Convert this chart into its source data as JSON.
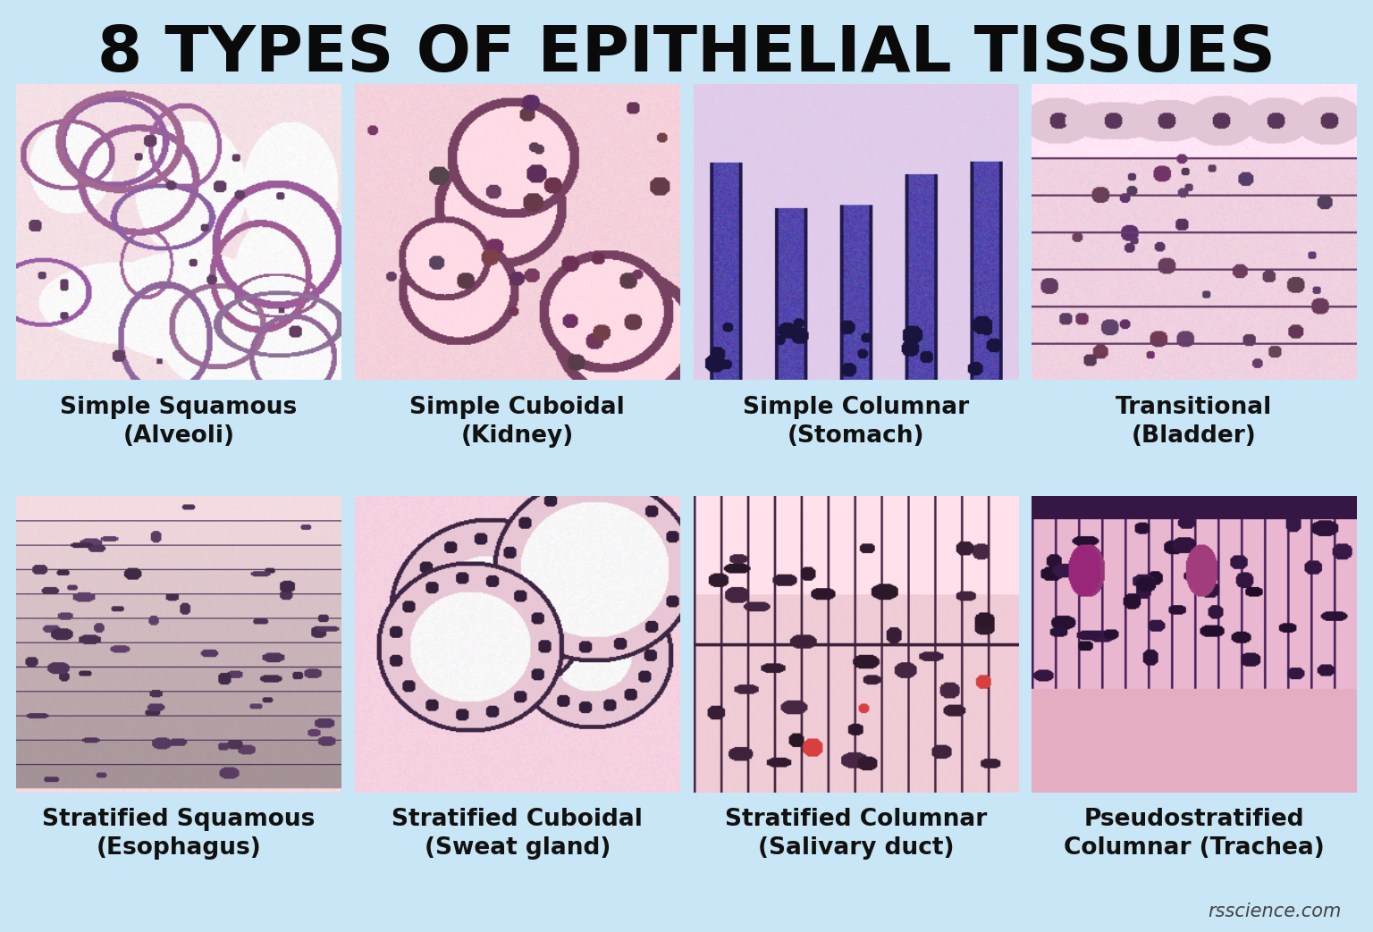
{
  "title": "8 TYPES OF EPITHELIAL TISSUES",
  "background_color": "#c8e6f5",
  "title_fontsize": 52,
  "label_fontsize": 19,
  "watermark": "rsscience.com",
  "grid_rows": 2,
  "grid_cols": 4,
  "images": [
    {
      "row": 0,
      "col": 0,
      "label_line1": "Simple Squamous",
      "label_line2": "(Alveoli)",
      "base_color": [
        0.96,
        0.88,
        0.9
      ],
      "dark_color": [
        0.55,
        0.35,
        0.55
      ],
      "style": "squamous_simple"
    },
    {
      "row": 0,
      "col": 1,
      "label_line1": "Simple Cuboidal",
      "label_line2": "(Kidney)",
      "base_color": [
        0.96,
        0.82,
        0.86
      ],
      "dark_color": [
        0.55,
        0.3,
        0.45
      ],
      "style": "cuboidal_simple"
    },
    {
      "row": 0,
      "col": 2,
      "label_line1": "Simple Columnar",
      "label_line2": "(Stomach)",
      "base_color": [
        0.88,
        0.8,
        0.92
      ],
      "dark_color": [
        0.25,
        0.2,
        0.6
      ],
      "style": "columnar_simple"
    },
    {
      "row": 0,
      "col": 3,
      "label_line1": "Transitional",
      "label_line2": "(Bladder)",
      "base_color": [
        0.94,
        0.82,
        0.88
      ],
      "dark_color": [
        0.5,
        0.3,
        0.5
      ],
      "style": "transitional"
    },
    {
      "row": 1,
      "col": 0,
      "label_line1": "Stratified Squamous",
      "label_line2": "(Esophagus)",
      "base_color": [
        0.96,
        0.86,
        0.88
      ],
      "dark_color": [
        0.45,
        0.3,
        0.5
      ],
      "style": "squamous_stratified"
    },
    {
      "row": 1,
      "col": 1,
      "label_line1": "Stratified Cuboidal",
      "label_line2": "(Sweat gland)",
      "base_color": [
        0.96,
        0.82,
        0.88
      ],
      "dark_color": [
        0.4,
        0.25,
        0.45
      ],
      "style": "cuboidal_stratified"
    },
    {
      "row": 1,
      "col": 2,
      "label_line1": "Stratified Columnar",
      "label_line2": "(Salivary duct)",
      "base_color": [
        0.94,
        0.8,
        0.84
      ],
      "dark_color": [
        0.4,
        0.22,
        0.38
      ],
      "style": "columnar_stratified"
    },
    {
      "row": 1,
      "col": 3,
      "label_line1": "Pseudostratified",
      "label_line2": "Columnar (Trachea)",
      "base_color": [
        0.92,
        0.72,
        0.82
      ],
      "dark_color": [
        0.35,
        0.15,
        0.45
      ],
      "style": "pseudostratified"
    }
  ]
}
